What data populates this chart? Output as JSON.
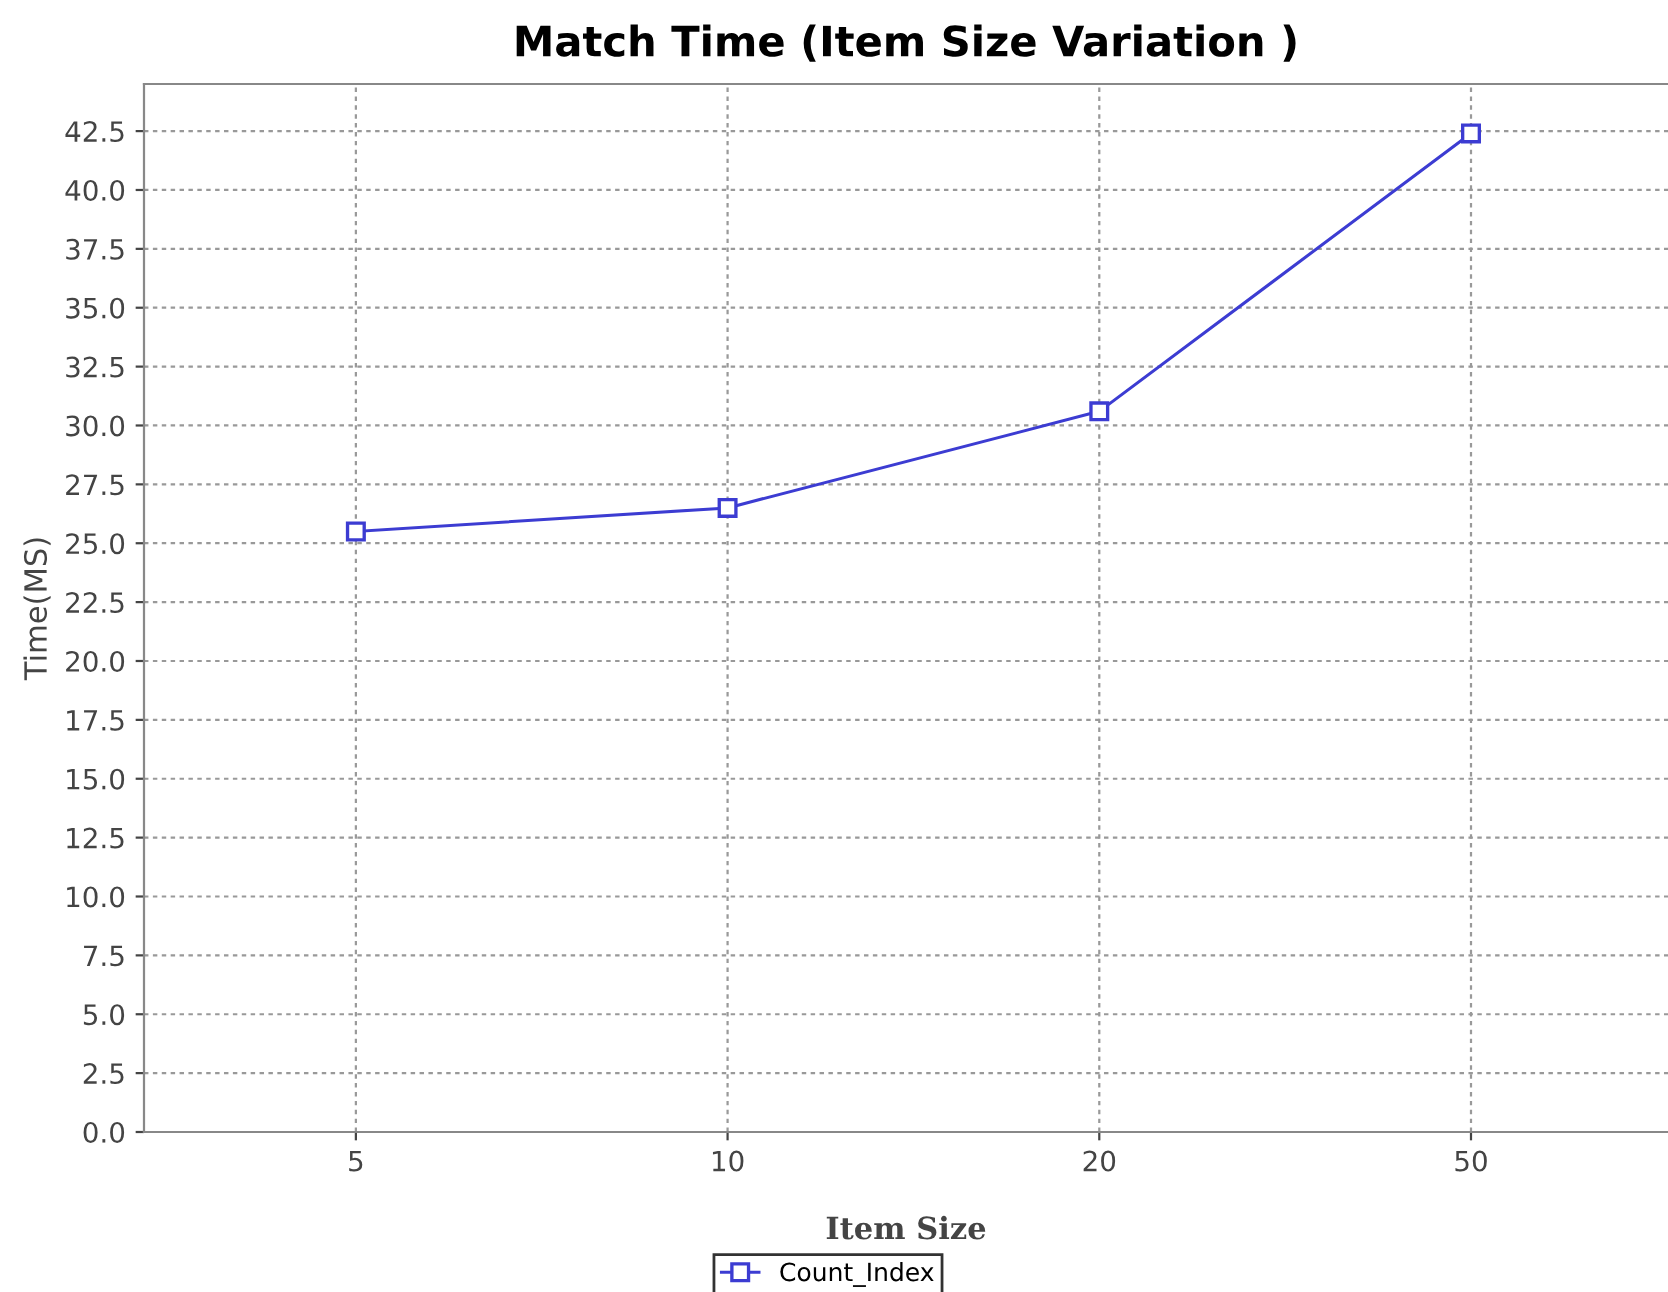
{
  "chart_data": {
    "type": "line",
    "title": "Match Time (Item Size Variation )",
    "xlabel": "Item Size",
    "ylabel": "Time(MS)",
    "categories": [
      "5",
      "10",
      "20",
      "50"
    ],
    "series": [
      {
        "name": "Count_Index",
        "color": "#3c3cd2",
        "values": [
          25.5,
          26.5,
          30.6,
          42.4
        ]
      }
    ],
    "ylim": [
      0,
      44.5
    ],
    "yticks": [
      {
        "value": 0,
        "label": "0.0"
      },
      {
        "value": 2.5,
        "label": "2.5"
      },
      {
        "value": 5,
        "label": "5.0"
      },
      {
        "value": 7.5,
        "label": "7.5"
      },
      {
        "value": 10,
        "label": "10.0"
      },
      {
        "value": 12.5,
        "label": "12.5"
      },
      {
        "value": 15,
        "label": "15.0"
      },
      {
        "value": 17.5,
        "label": "17.5"
      },
      {
        "value": 20,
        "label": "20.0"
      },
      {
        "value": 22.5,
        "label": "22.5"
      },
      {
        "value": 25,
        "label": "25.0"
      },
      {
        "value": 27.5,
        "label": "27.5"
      },
      {
        "value": 30,
        "label": "30.0"
      },
      {
        "value": 32.5,
        "label": "32.5"
      },
      {
        "value": 35,
        "label": "35.0"
      },
      {
        "value": 37.5,
        "label": "37.5"
      },
      {
        "value": 40,
        "label": "40.0"
      },
      {
        "value": 42.5,
        "label": "42.5"
      }
    ],
    "grid": true,
    "legend": "bottom",
    "marker": "square",
    "line_style": "solid"
  }
}
